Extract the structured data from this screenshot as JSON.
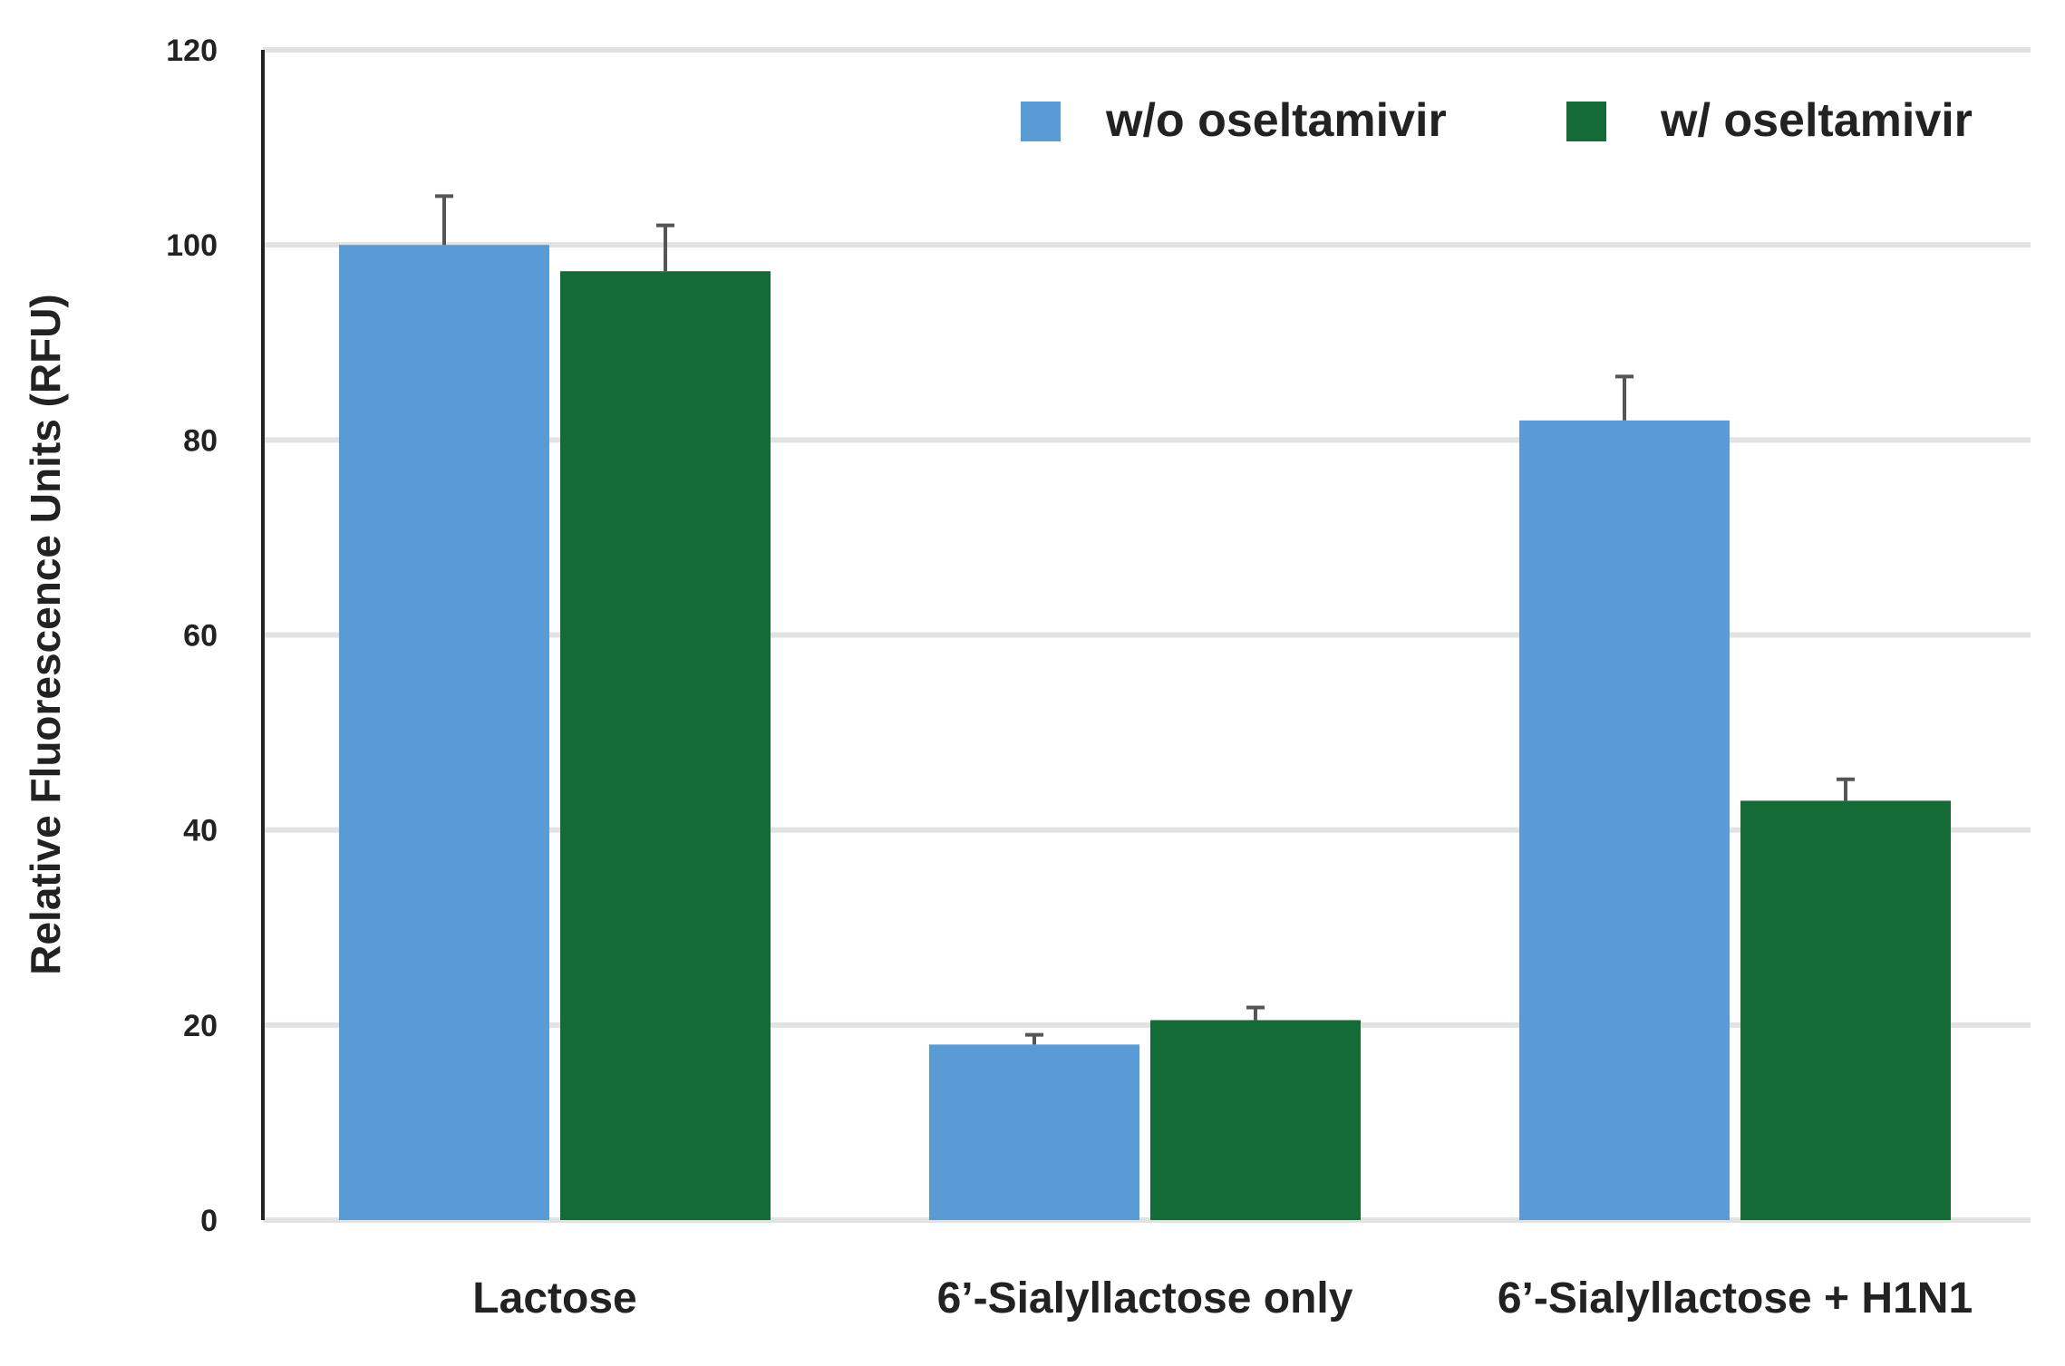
{
  "chart_data": {
    "type": "bar",
    "title": "",
    "xlabel": "",
    "ylabel": "Relative Fluorescence Units (RFU)",
    "ylim": [
      0,
      120
    ],
    "yticks": [
      0,
      20,
      40,
      60,
      80,
      100,
      120
    ],
    "grid": true,
    "legend_position": "top-right",
    "categories": [
      "Lactose",
      "6’-Sialyllactose only",
      "6’-Sialyllactose + H1N1"
    ],
    "series": [
      {
        "name": "w/o oseltamivir",
        "color": "#5b9bd5",
        "values": [
          100,
          18,
          82
        ],
        "errors": [
          5,
          1,
          4.5
        ]
      },
      {
        "name": "w/ oseltamivir",
        "color": "#146b35",
        "values": [
          97.3,
          20.5,
          43
        ],
        "errors": [
          4.7,
          1.3,
          2.2
        ]
      }
    ]
  }
}
